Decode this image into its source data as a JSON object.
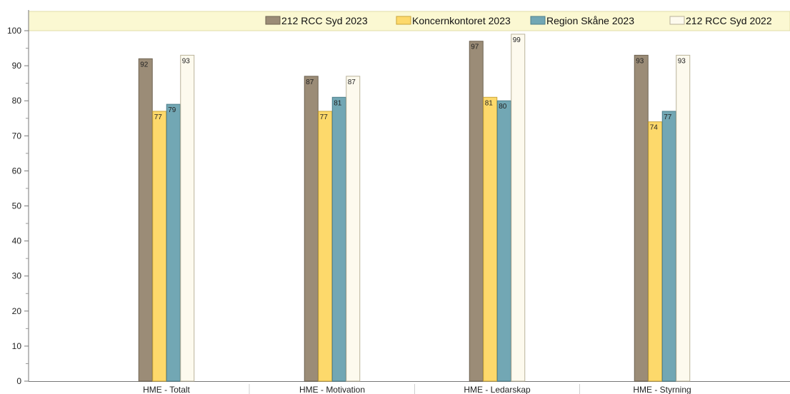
{
  "chart_data": {
    "type": "bar",
    "categories": [
      "HME - Totalt",
      "HME - Motivation",
      "HME - Ledarskap",
      "HME - Styrning"
    ],
    "series": [
      {
        "name": "212 RCC Syd 2023",
        "values": [
          92,
          87,
          97,
          93
        ],
        "color": "#9b8c77",
        "stroke": "#6f6352"
      },
      {
        "name": "Koncernkontoret 2023",
        "values": [
          77,
          77,
          81,
          74
        ],
        "color": "#fdd96b",
        "stroke": "#c9a53a"
      },
      {
        "name": "Region Skåne 2023",
        "values": [
          79,
          81,
          80,
          77
        ],
        "color": "#72a7b4",
        "stroke": "#4d7f8b"
      },
      {
        "name": "212 RCC Syd 2022",
        "values": [
          93,
          87,
          99,
          93
        ],
        "color": "#fdfaee",
        "stroke": "#b9b29a"
      }
    ],
    "ylim": [
      0,
      100
    ],
    "yticks": [
      "0",
      "10",
      "20",
      "30",
      "40",
      "50",
      "60",
      "70",
      "80",
      "90",
      "100"
    ],
    "grid": false,
    "legend_position": "top",
    "legend_background": "#fbf8d2"
  }
}
